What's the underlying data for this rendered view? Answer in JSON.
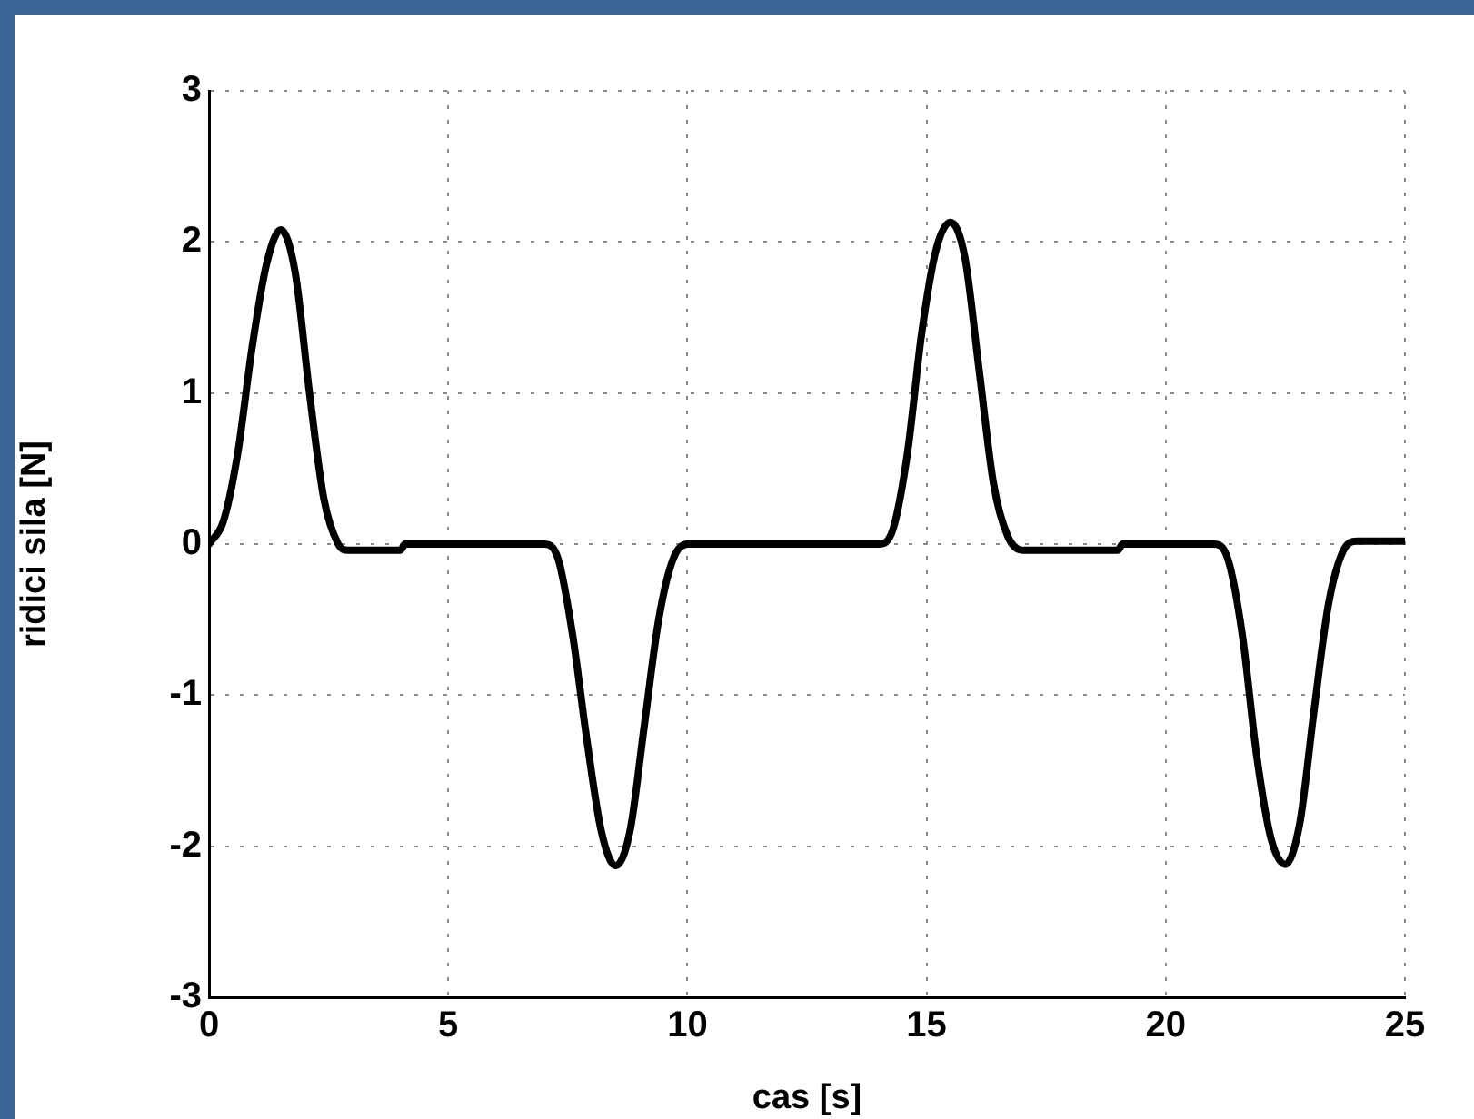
{
  "chart_data": {
    "type": "line",
    "xlabel": "cas [s]",
    "ylabel": "ridici sila [N]",
    "xlim": [
      0,
      25
    ],
    "ylim": [
      -3,
      3
    ],
    "xticks": [
      0,
      5,
      10,
      15,
      20,
      25
    ],
    "yticks": [
      -3,
      -2,
      -1,
      0,
      1,
      2,
      3
    ],
    "grid": true,
    "legend": false,
    "marker": "none",
    "line_style": "solid",
    "x": [
      0,
      0.3,
      0.6,
      0.9,
      1.2,
      1.5,
      1.8,
      2.1,
      2.4,
      2.7,
      2.9,
      4.0,
      4.1,
      7.0,
      7.3,
      7.6,
      7.9,
      8.2,
      8.5,
      8.8,
      9.1,
      9.4,
      9.7,
      10.0,
      14.0,
      14.3,
      14.6,
      14.9,
      15.2,
      15.5,
      15.8,
      16.1,
      16.4,
      16.7,
      17.0,
      19.0,
      19.1,
      21.0,
      21.3,
      21.6,
      21.9,
      22.2,
      22.5,
      22.8,
      23.1,
      23.4,
      23.7,
      24.0,
      25.0
    ],
    "series": [
      {
        "color": "#000000",
        "values": [
          0,
          0.15,
          0.6,
          1.3,
          1.85,
          2.08,
          1.8,
          1.0,
          0.3,
          0.0,
          -0.04,
          -0.04,
          0,
          0,
          -0.1,
          -0.6,
          -1.3,
          -1.9,
          -2.13,
          -1.9,
          -1.2,
          -0.5,
          -0.1,
          0,
          0,
          0.1,
          0.6,
          1.4,
          1.95,
          2.13,
          1.9,
          1.15,
          0.4,
          0.05,
          -0.04,
          -0.04,
          0,
          0,
          -0.1,
          -0.6,
          -1.4,
          -1.95,
          -2.12,
          -1.85,
          -1.1,
          -0.4,
          -0.05,
          0.02,
          0.02
        ]
      }
    ]
  }
}
